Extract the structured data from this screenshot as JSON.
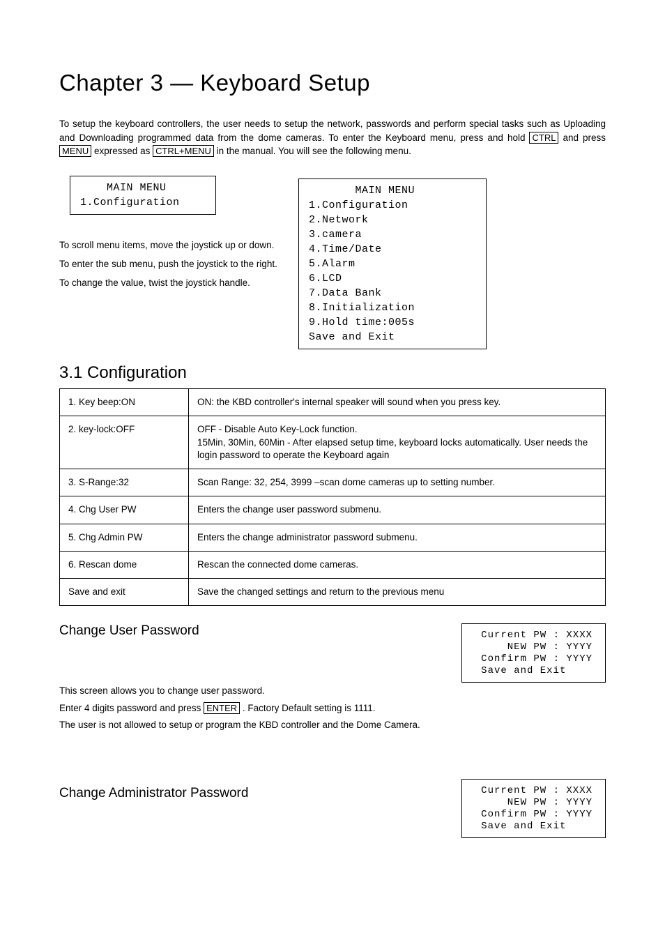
{
  "chapter_title": "Chapter 3 — Keyboard Setup",
  "intro_parts": {
    "p1": "To setup the keyboard controllers, the user needs to setup the network, passwords and perform special tasks such as Uploading and Downloading programmed data from the dome cameras. To enter the Keyboard menu, press and hold ",
    "k1": "CTRL",
    "p2": " and press ",
    "k2": "MENU",
    "p3": " expressed as ",
    "k3": "CTRL+MENU",
    "p4": " in the manual. You will see the following menu."
  },
  "lcd_short": "    MAIN MENU\n1.Configuration",
  "joystick_notes": [
    "To scroll menu items, move the joystick up or down.",
    "To enter the sub menu, push the joystick to the right.",
    "To change the value, twist the joystick handle."
  ],
  "lcd_full": "       MAIN MENU\n1.Configuration\n2.Network\n3.camera\n4.Time/Date\n5.Alarm\n6.LCD\n7.Data Bank\n8.Initialization\n9.Hold time:005s\nSave and Exit",
  "section_title": "3.1 Configuration",
  "config_table": [
    {
      "item": "1. Key beep:ON",
      "desc": "ON: the KBD controller's internal speaker will sound when you press key."
    },
    {
      "item": "2. key-lock:OFF",
      "desc": "OFF - Disable Auto Key-Lock function.\n15Min, 30Min, 60Min - After elapsed setup time, keyboard locks automatically. User needs the login password to operate the Keyboard again"
    },
    {
      "item": "3. S-Range:32",
      "desc": "Scan Range: 32, 254, 3999 –scan dome cameras up to setting number."
    },
    {
      "item": "4. Chg User PW",
      "desc": "Enters the change user password submenu."
    },
    {
      "item": "5. Chg Admin PW",
      "desc": "Enters the change administrator password submenu."
    },
    {
      "item": "6. Rescan dome",
      "desc": "Rescan the connected dome cameras."
    },
    {
      "item": "Save and exit",
      "desc": "Save the changed settings and return to the previous menu"
    }
  ],
  "user_pw_title": "Change User Password",
  "user_pw_lcd": " Current PW : XXXX\n     NEW PW : YYYY\n Confirm PW : YYYY\n Save and Exit",
  "user_pw_body1": "This screen allows you to change user password.",
  "user_pw_body2a": "Enter 4 digits password and press ",
  "user_pw_body2_key": "ENTER",
  "user_pw_body2b": " . Factory Default setting is 1111.",
  "user_pw_body3": "The user is not allowed to setup or program the KBD controller and the Dome Camera.",
  "admin_pw_title": "Change Administrator Password",
  "admin_pw_lcd": " Current PW : XXXX\n     NEW PW : YYYY\n Confirm PW : YYYY\n Save and Exit"
}
